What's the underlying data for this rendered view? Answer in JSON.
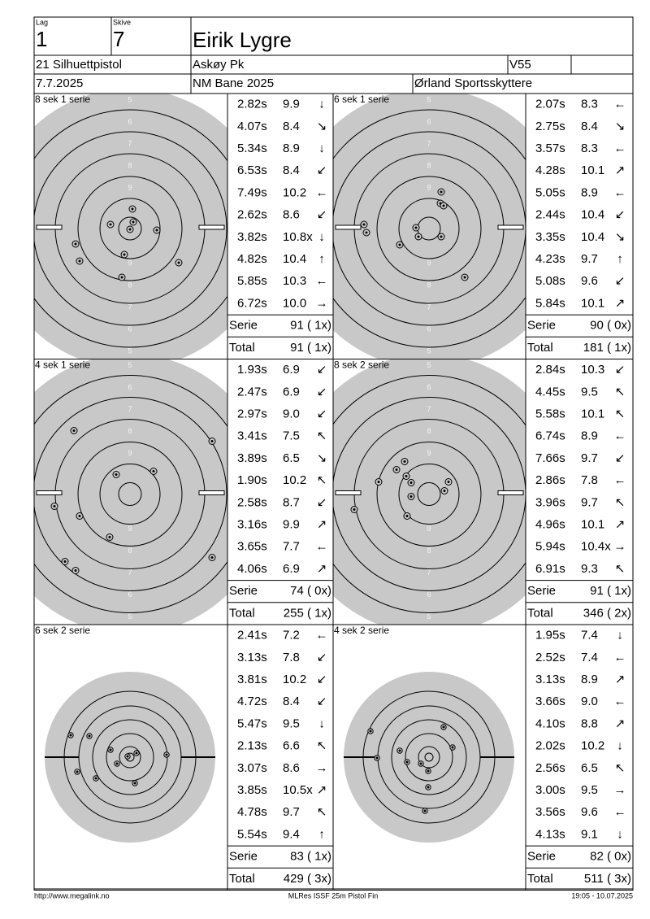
{
  "header": {
    "lag_label": "Lag",
    "lag": "1",
    "skive_label": "Skive",
    "skive": "7",
    "name": "Eirik Lygre",
    "class": "21 Silhuettpistol",
    "club": "Askøy Pk",
    "category": "V55",
    "date": "7.7.2025",
    "event": "NM Bane 2025",
    "venue": "Ørland Sportsskyttere"
  },
  "ring_labels": [
    "5",
    "6",
    "7",
    "8",
    "9"
  ],
  "panels": [
    {
      "label": "8 sek 1 serie",
      "shots": [
        [
          "2.82s",
          "9.9",
          "↓"
        ],
        [
          "4.07s",
          "8.4",
          "↘"
        ],
        [
          "5.34s",
          "8.9",
          "↓"
        ],
        [
          "6.53s",
          "8.4",
          "↙"
        ],
        [
          "7.49s",
          "10.2",
          "←"
        ],
        [
          "2.62s",
          "8.6",
          "↙"
        ],
        [
          "3.82s",
          "10.8x",
          "↓"
        ],
        [
          "4.82s",
          "10.4",
          "↑"
        ],
        [
          "5.85s",
          "10.3",
          "←"
        ],
        [
          "6.72s",
          "10.0",
          "→"
        ]
      ],
      "serie_label": "Serie",
      "serie": "91 ( 1x)",
      "total_label": "Total",
      "total": "91 ( 1x)"
    },
    {
      "label": "6 sek 1 serie",
      "shots": [
        [
          "2.07s",
          "8.3",
          "←"
        ],
        [
          "2.75s",
          "8.4",
          "↘"
        ],
        [
          "3.57s",
          "8.3",
          "←"
        ],
        [
          "4.28s",
          "10.1",
          "↗"
        ],
        [
          "5.05s",
          "8.9",
          "←"
        ],
        [
          "2.44s",
          "10.4",
          "↙"
        ],
        [
          "3.35s",
          "10.4",
          "↘"
        ],
        [
          "4.23s",
          "9.7",
          "↑"
        ],
        [
          "5.08s",
          "9.6",
          "↙"
        ],
        [
          "5.84s",
          "10.1",
          "↗"
        ]
      ],
      "serie_label": "Serie",
      "serie": "90 ( 0x)",
      "total_label": "Total",
      "total": "181 ( 1x)"
    },
    {
      "label": "4 sek 1 serie",
      "shots": [
        [
          "1.93s",
          "6.9",
          "↙"
        ],
        [
          "2.47s",
          "6.9",
          "↙"
        ],
        [
          "2.97s",
          "9.0",
          "↙"
        ],
        [
          "3.41s",
          "7.5",
          "↖"
        ],
        [
          "3.89s",
          "6.5",
          "↘"
        ],
        [
          "1.90s",
          "10.2",
          "↖"
        ],
        [
          "2.58s",
          "8.7",
          "↙"
        ],
        [
          "3.16s",
          "9.9",
          "↗"
        ],
        [
          "3.65s",
          "7.7",
          "←"
        ],
        [
          "4.06s",
          "6.9",
          "↗"
        ]
      ],
      "serie_label": "Serie",
      "serie": "74 ( 0x)",
      "total_label": "Total",
      "total": "255 ( 1x)"
    },
    {
      "label": "8 sek 2 serie",
      "shots": [
        [
          "2.84s",
          "10.3",
          "↙"
        ],
        [
          "4.45s",
          "9.5",
          "↖"
        ],
        [
          "5.58s",
          "10.1",
          "↖"
        ],
        [
          "6.74s",
          "8.9",
          "←"
        ],
        [
          "7.66s",
          "9.7",
          "↙"
        ],
        [
          "2.86s",
          "7.8",
          "←"
        ],
        [
          "3.96s",
          "9.7",
          "↖"
        ],
        [
          "4.96s",
          "10.1",
          "↗"
        ],
        [
          "5.94s",
          "10.4x",
          "→"
        ],
        [
          "6.91s",
          "9.3",
          "↖"
        ]
      ],
      "serie_label": "Serie",
      "serie": "91 ( 1x)",
      "total_label": "Total",
      "total": "346 ( 2x)"
    },
    {
      "label": "6 sek 2 serie",
      "shots": [
        [
          "2.41s",
          "7.2",
          "←"
        ],
        [
          "3.13s",
          "7.8",
          "↙"
        ],
        [
          "3.81s",
          "10.2",
          "↙"
        ],
        [
          "4.72s",
          "8.4",
          "↙"
        ],
        [
          "5.47s",
          "9.5",
          "↓"
        ],
        [
          "2.13s",
          "6.6",
          "↖"
        ],
        [
          "3.07s",
          "8.6",
          "→"
        ],
        [
          "3.85s",
          "10.5x",
          "↗"
        ],
        [
          "4.78s",
          "9.7",
          "↖"
        ],
        [
          "5.54s",
          "9.4",
          "↑"
        ]
      ],
      "serie_label": "Serie",
      "serie": "83 ( 1x)",
      "total_label": "Total",
      "total": "429 ( 3x)"
    },
    {
      "label": "4 sek 2 serie",
      "shots": [
        [
          "1.95s",
          "7.4",
          "↓"
        ],
        [
          "2.52s",
          "7.4",
          "←"
        ],
        [
          "3.13s",
          "8.9",
          "↗"
        ],
        [
          "3.66s",
          "9.0",
          "←"
        ],
        [
          "4.10s",
          "8.8",
          "↗"
        ],
        [
          "2.02s",
          "10.2",
          "↓"
        ],
        [
          "2.56s",
          "6.5",
          "↖"
        ],
        [
          "3.00s",
          "9.5",
          "→"
        ],
        [
          "3.56s",
          "9.6",
          "←"
        ],
        [
          "4.13s",
          "9.1",
          "↓"
        ]
      ],
      "serie_label": "Serie",
      "serie": "82 ( 0x)",
      "total_label": "Total",
      "total": "511 ( 3x)"
    }
  ],
  "footer": {
    "left": "http://www.megalink.no",
    "center": "MLRes ISSF 25m Pistol Fin",
    "right": "19:05 - 10.07.2025"
  }
}
